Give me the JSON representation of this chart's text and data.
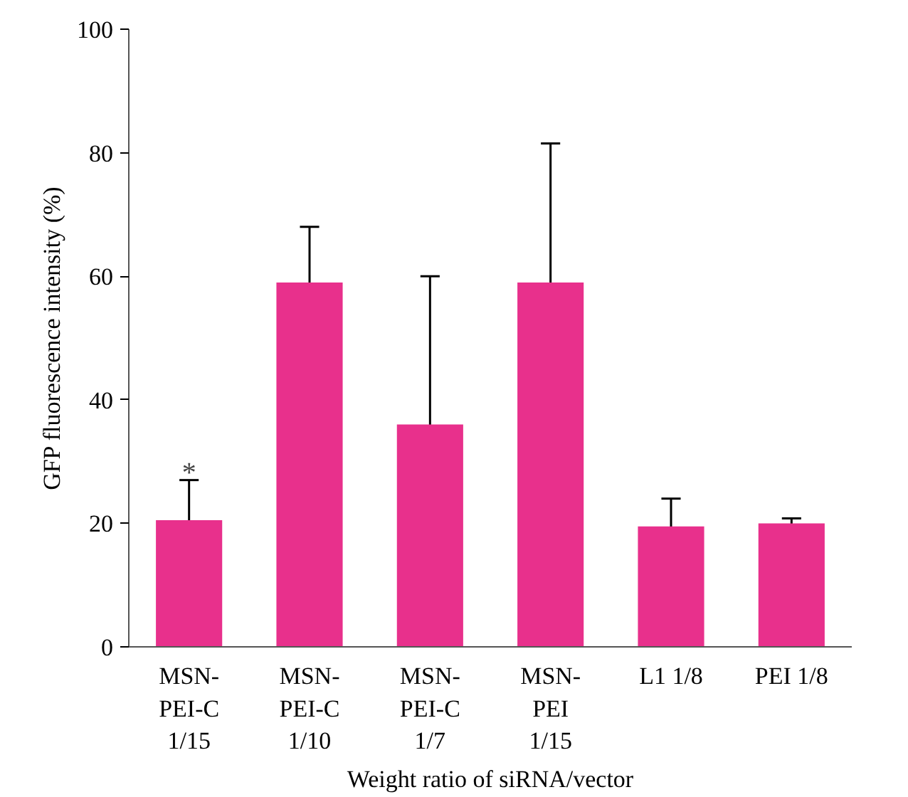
{
  "chart_data": {
    "type": "bar",
    "xlabel": "Weight ratio of siRNA/vector",
    "ylabel": "GFP fluorescence intensity (%)",
    "categories": [
      "MSN-\nPEI-C\n1/15",
      "MSN-\nPEI-C\n1/10",
      "MSN-\nPEI-C\n1/7",
      "MSN-\nPEI\n1/15",
      "L1 1/8",
      "PEI 1/8"
    ],
    "values": [
      20.5,
      59,
      36,
      59,
      19.5,
      20
    ],
    "errors": [
      6.5,
      9,
      24,
      22.5,
      4.5,
      0.8
    ],
    "color": "#e8308c",
    "ylim": [
      0,
      100
    ],
    "yticks": [
      0,
      20,
      40,
      60,
      80,
      100
    ],
    "grid": false,
    "annotations": [
      {
        "text": "*",
        "x": "MSN-\nPEI-C\n1/15",
        "y": 27
      }
    ]
  }
}
